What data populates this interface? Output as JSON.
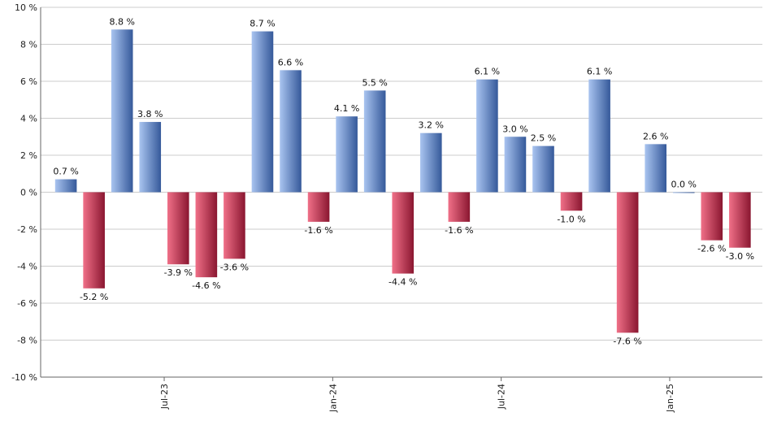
{
  "chart_data": {
    "type": "bar",
    "title": "",
    "xlabel": "",
    "ylabel": "",
    "ylim": [
      -10,
      10
    ],
    "y_ticks": [
      "10 %",
      "8 %",
      "6 %",
      "4 %",
      "2 %",
      "0 %",
      "-2 %",
      "-4 %",
      "-6 %",
      "-8 %",
      "-10 %"
    ],
    "y_tick_values": [
      10,
      8,
      6,
      4,
      2,
      0,
      -2,
      -4,
      -6,
      -8,
      -10
    ],
    "x_tick_labels": [
      "Jul-23",
      "Jan-24",
      "Jul-24",
      "Jan-25"
    ],
    "x_tick_after_bar": [
      3,
      9,
      15,
      21
    ],
    "values": [
      0.7,
      -5.2,
      8.8,
      3.8,
      -3.9,
      -4.6,
      -3.6,
      8.7,
      6.6,
      -1.6,
      4.1,
      5.5,
      -4.4,
      3.2,
      -1.6,
      6.1,
      3.0,
      2.5,
      -1.0,
      6.1,
      -7.6,
      2.6,
      0.0,
      -2.6,
      -3.0
    ],
    "labels": [
      "0.7 %",
      "-5.2 %",
      "8.8 %",
      "3.8 %",
      "-3.9 %",
      "-4.6 %",
      "-3.6 %",
      "8.7 %",
      "6.6 %",
      "-1.6 %",
      "4.1 %",
      "5.5 %",
      "-4.4 %",
      "3.2 %",
      "-1.6 %",
      "6.1 %",
      "3.0 %",
      "2.5 %",
      "-1.0 %",
      "6.1 %",
      "-7.6 %",
      "2.6 %",
      "0.0 %",
      "-2.6 %",
      "-3.0 %"
    ],
    "grid": true,
    "colors": {
      "positive_light": "#a9c4f0",
      "positive_dark": "#35599a",
      "negative_light": "#f07088",
      "negative_dark": "#8a1630",
      "grid": "#cccccc",
      "axis": "#666666"
    }
  }
}
